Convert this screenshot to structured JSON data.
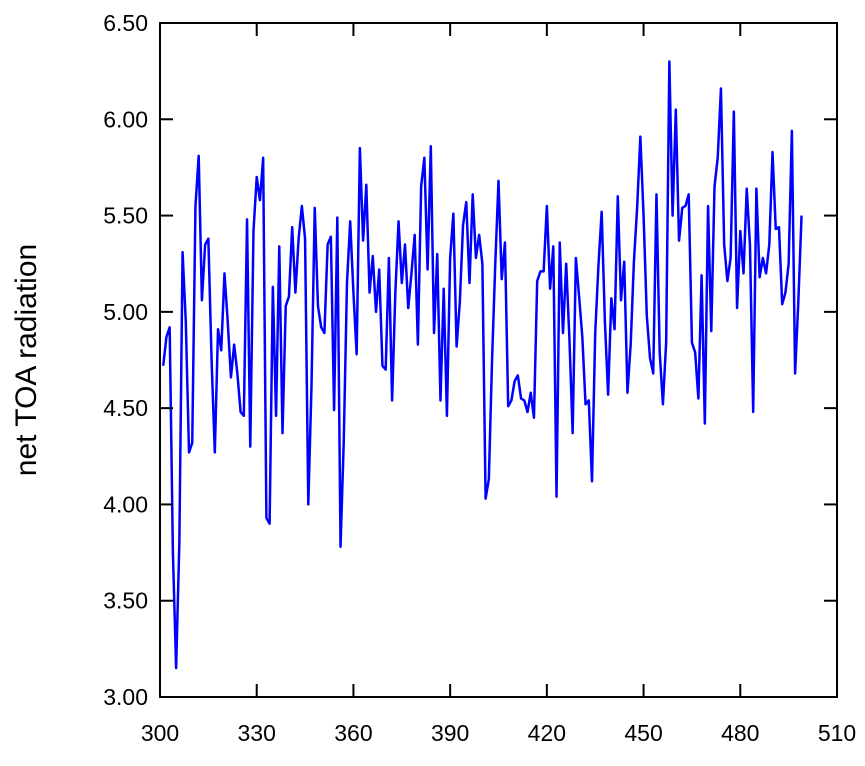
{
  "chart_data": {
    "type": "line",
    "y_label": "net TOA radiation",
    "x": [
      301,
      302,
      303,
      304,
      305,
      306,
      307,
      308,
      309,
      310,
      311,
      312,
      313,
      314,
      315,
      316,
      317,
      318,
      319,
      320,
      321,
      322,
      323,
      324,
      325,
      326,
      327,
      328,
      329,
      330,
      331,
      332,
      333,
      334,
      335,
      336,
      337,
      338,
      339,
      340,
      341,
      342,
      343,
      344,
      345,
      346,
      347,
      348,
      349,
      350,
      351,
      352,
      353,
      354,
      355,
      356,
      357,
      358,
      359,
      360,
      361,
      362,
      363,
      364,
      365,
      366,
      367,
      368,
      369,
      370,
      371,
      372,
      373,
      374,
      375,
      376,
      377,
      378,
      379,
      380,
      381,
      382,
      383,
      384,
      385,
      386,
      387,
      388,
      389,
      390,
      391,
      392,
      393,
      394,
      395,
      396,
      397,
      398,
      399,
      400,
      401,
      402,
      403,
      404,
      405,
      406,
      407,
      408,
      409,
      410,
      411,
      412,
      413,
      414,
      415,
      416,
      417,
      418,
      419,
      420,
      421,
      422,
      423,
      424,
      425,
      426,
      427,
      428,
      429,
      430,
      431,
      432,
      433,
      434,
      435,
      436,
      437,
      438,
      439,
      440,
      441,
      442,
      443,
      444,
      445,
      446,
      447,
      448,
      449,
      450,
      451,
      452,
      453,
      454,
      455,
      456,
      457,
      458,
      459,
      460,
      461,
      462,
      463,
      464,
      465,
      466,
      467,
      468,
      469,
      470,
      471,
      472,
      473,
      474,
      475,
      476,
      477,
      478,
      479,
      480,
      481,
      482,
      483,
      484,
      485,
      486,
      487,
      488,
      489,
      490,
      491,
      492,
      493,
      494,
      495,
      496,
      497,
      498,
      499
    ],
    "series": [
      {
        "color": "#0000ff",
        "values": [
          4.72,
          4.87,
          4.92,
          3.75,
          3.15,
          3.8,
          5.31,
          4.95,
          4.27,
          4.32,
          5.55,
          5.81,
          5.06,
          5.35,
          5.38,
          4.75,
          4.27,
          4.91,
          4.8,
          5.2,
          4.95,
          4.66,
          4.83,
          4.68,
          4.48,
          4.46,
          5.48,
          4.3,
          5.42,
          5.7,
          5.58,
          5.8,
          3.93,
          3.9,
          5.13,
          4.46,
          5.34,
          4.37,
          5.03,
          5.08,
          5.44,
          5.1,
          5.38,
          5.55,
          5.38,
          4.0,
          4.62,
          5.54,
          5.03,
          4.92,
          4.89,
          5.35,
          5.39,
          4.49,
          5.49,
          3.78,
          4.33,
          5.15,
          5.47,
          5.1,
          4.78,
          5.85,
          5.37,
          5.66,
          5.1,
          5.29,
          5.0,
          5.22,
          4.72,
          4.7,
          5.28,
          4.54,
          5.1,
          5.47,
          5.15,
          5.35,
          5.02,
          5.2,
          5.4,
          4.83,
          5.65,
          5.8,
          5.22,
          5.86,
          4.89,
          5.3,
          4.54,
          5.12,
          4.46,
          5.28,
          5.51,
          4.82,
          5.05,
          5.45,
          5.57,
          5.15,
          5.61,
          5.28,
          5.4,
          5.25,
          4.03,
          4.13,
          4.75,
          5.25,
          5.68,
          5.17,
          5.36,
          4.51,
          4.54,
          4.64,
          4.67,
          4.55,
          4.54,
          4.48,
          4.58,
          4.45,
          5.16,
          5.21,
          5.21,
          5.55,
          5.12,
          5.34,
          4.04,
          5.36,
          4.89,
          5.25,
          4.86,
          4.37,
          5.28,
          5.08,
          4.87,
          4.52,
          4.54,
          4.12,
          4.89,
          5.24,
          5.52,
          4.95,
          4.57,
          5.07,
          4.91,
          5.6,
          5.06,
          5.26,
          4.58,
          4.83,
          5.26,
          5.54,
          5.91,
          5.5,
          4.98,
          4.76,
          4.68,
          5.61,
          4.79,
          4.52,
          4.84,
          6.3,
          5.5,
          6.05,
          5.37,
          5.54,
          5.55,
          5.61,
          4.84,
          4.79,
          4.55,
          5.19,
          4.42,
          5.55,
          4.9,
          5.65,
          5.8,
          6.16,
          5.35,
          5.16,
          5.28,
          6.04,
          5.02,
          5.42,
          5.2,
          5.64,
          5.35,
          4.48,
          5.64,
          5.18,
          5.28,
          5.2,
          5.35,
          5.83,
          5.43,
          5.44,
          5.04,
          5.1,
          5.25,
          5.94,
          4.68,
          5.05,
          5.5
        ]
      }
    ],
    "xlim": [
      300,
      510
    ],
    "xticks": [
      300,
      330,
      360,
      390,
      420,
      450,
      480,
      510
    ],
    "ylim": [
      3.0,
      6.5
    ],
    "yticks": [
      {
        "value": 3.0,
        "label": "3.00"
      },
      {
        "value": 3.5,
        "label": "3.50"
      },
      {
        "value": 4.0,
        "label": "4.00"
      },
      {
        "value": 4.5,
        "label": "4.50"
      },
      {
        "value": 5.0,
        "label": "5.00"
      },
      {
        "value": 5.5,
        "label": "5.50"
      },
      {
        "value": 6.0,
        "label": "6.00"
      },
      {
        "value": 6.5,
        "label": "6.50"
      }
    ]
  }
}
